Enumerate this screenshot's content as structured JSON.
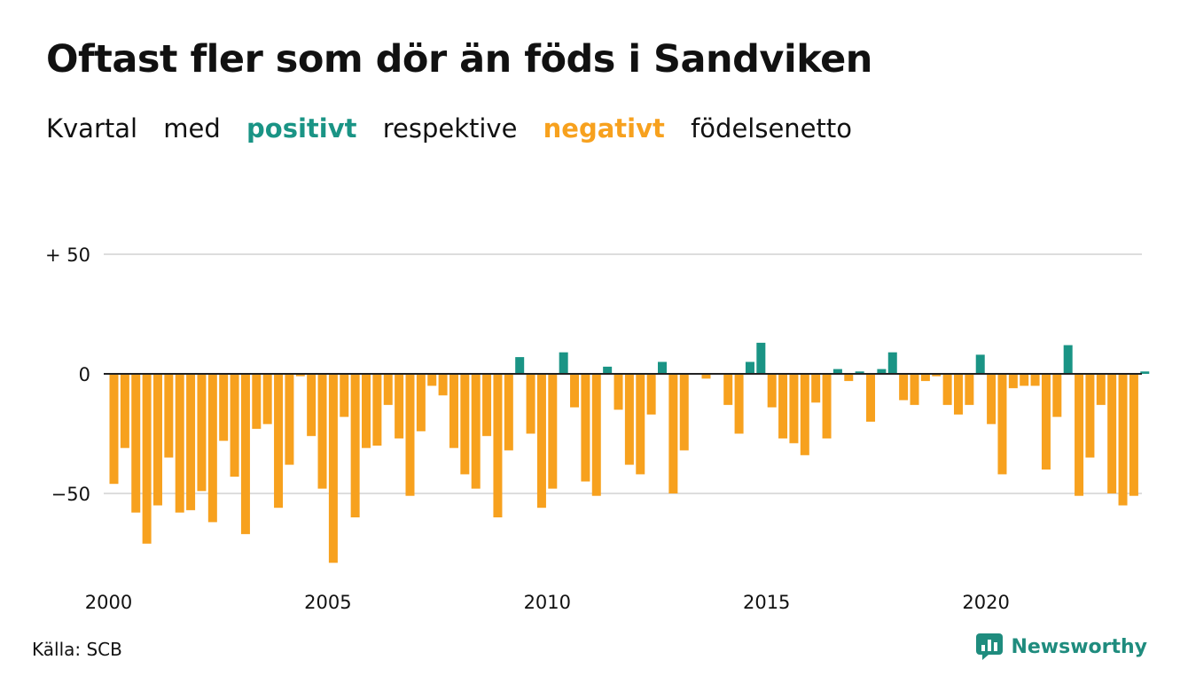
{
  "header": {
    "title": "Oftast fler som dör än föds i Sandviken",
    "subtitle_words": [
      "Kvartal",
      "med",
      "positivt",
      "respektive",
      "negativt",
      "födelsenetto"
    ]
  },
  "colors": {
    "positive": "#1a9485",
    "negative": "#f7a11e",
    "grid": "#dddddd",
    "zero_line": "#222222",
    "text": "#111111"
  },
  "footer": {
    "source": "Källa: SCB",
    "brand": "Newsworthy",
    "brand_icon": "newsworthy-logo-icon"
  },
  "chart_data": {
    "type": "bar",
    "title": "Oftast fler som dör än föds i Sandviken",
    "subtitle": "Kvartal med positivt respektive negativt födelsenetto",
    "xlabel": "",
    "ylabel": "",
    "ylim": [
      -80,
      50
    ],
    "yticks": [
      {
        "value": 50,
        "label": "+ 50"
      },
      {
        "value": 0,
        "label": "0"
      },
      {
        "value": -50,
        "label": "−50"
      }
    ],
    "xticks": [
      {
        "year": 2000,
        "label": "2000"
      },
      {
        "year": 2005,
        "label": "2005"
      },
      {
        "year": 2010,
        "label": "2010"
      },
      {
        "year": 2015,
        "label": "2015"
      },
      {
        "year": 2020,
        "label": "2020"
      }
    ],
    "grid": true,
    "start": "2000 Q1",
    "frequency": "quarter",
    "values": [
      -46,
      -31,
      -58,
      -71,
      -55,
      -35,
      -58,
      -57,
      -49,
      -62,
      -28,
      -43,
      -67,
      -23,
      -21,
      -56,
      -38,
      -1,
      -26,
      -48,
      -79,
      -18,
      -60,
      -31,
      -30,
      -13,
      -27,
      -51,
      -24,
      -5,
      -9,
      -31,
      -42,
      -48,
      -26,
      -60,
      -32,
      7,
      -25,
      -56,
      -48,
      9,
      -14,
      -45,
      -51,
      3,
      -15,
      -38,
      -42,
      -17,
      5,
      -50,
      -32,
      0,
      -2,
      0,
      -13,
      -25,
      5,
      13,
      -14,
      -27,
      -29,
      -34,
      -12,
      -27,
      2,
      -3,
      1,
      -20,
      2,
      9,
      -11,
      -13,
      -3,
      -1,
      -13,
      -17,
      -13,
      8,
      -21,
      -42,
      -6,
      -5,
      -5,
      -40,
      -18,
      12,
      -51,
      -35,
      -13,
      -50,
      -55,
      -51,
      1
    ]
  }
}
